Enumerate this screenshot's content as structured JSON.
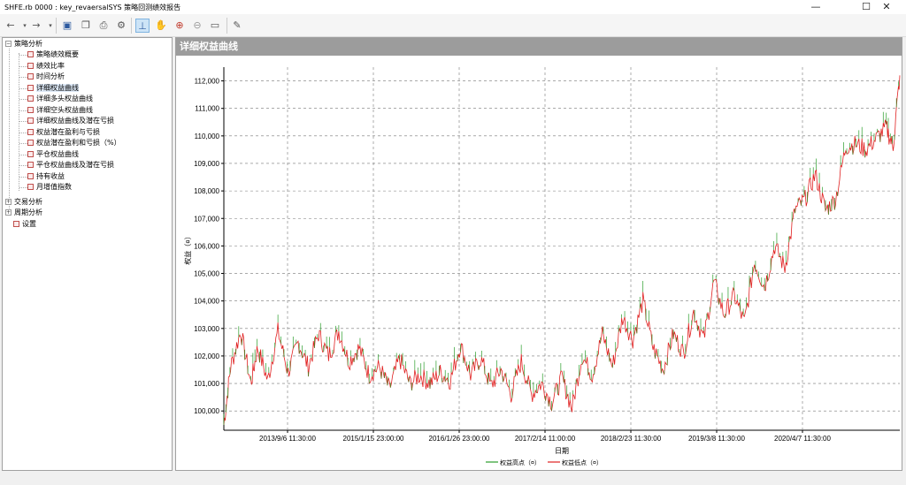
{
  "window": {
    "title": "SHFE.rb 0000 : key_revaersalSYS 策略回测绩效报告",
    "minimize": "—",
    "maximize": "☐",
    "close": "✕"
  },
  "toolbar": {
    "icons": [
      "back-arrow",
      "dropdown",
      "forward-arrow",
      "dropdown",
      "save",
      "copy",
      "print",
      "settings",
      "crosshair",
      "hand-pan",
      "zoom-in",
      "zoom-out",
      "fit-window",
      "pencil"
    ]
  },
  "tree": {
    "root1": "策略分析",
    "items": [
      "策略绩效概要",
      "绩效比率",
      "时间分析",
      "详细权益曲线",
      "详细多头权益曲线",
      "详细空头权益曲线",
      "详细权益曲线及潜在亏损",
      "权益潜在盈利与亏损",
      "权益潜在盈利和亏损（%）",
      "平仓权益曲线",
      "平仓权益曲线及潜在亏损",
      "持有收益",
      "月增值指数"
    ],
    "root2": "交易分析",
    "root3": "周期分析",
    "root4": "设置",
    "selected_index": 3
  },
  "panel": {
    "title": "详细权益曲线"
  },
  "chart_data": {
    "type": "line",
    "ylabel": "权益（¤）",
    "xlabel": "日期",
    "ylim": [
      99300,
      112500
    ],
    "yticks": [
      "100,000",
      "101,000",
      "102,000",
      "103,000",
      "104,000",
      "105,000",
      "106,000",
      "107,000",
      "108,000",
      "109,000",
      "110,000",
      "111,000",
      "112,000"
    ],
    "ytick_values": [
      100000,
      101000,
      102000,
      103000,
      104000,
      105000,
      106000,
      107000,
      108000,
      109000,
      110000,
      111000,
      112000
    ],
    "xticks": [
      "2013/9/6 11:30:00",
      "2015/1/15 23:00:00",
      "2016/1/26 23:00:00",
      "2017/2/14 11:00:00",
      "2018/2/23 11:30:00",
      "2019/3/8 11:30:00",
      "2020/4/7 11:30:00"
    ],
    "grid": true,
    "legend": [
      {
        "name": "权益高点（¤）",
        "color": "#2a9d2a"
      },
      {
        "name": "权益低点（¤）",
        "color": "#e02020"
      }
    ],
    "equity_path": [
      [
        0,
        99500
      ],
      [
        0.02,
        101600
      ],
      [
        0.05,
        102900
      ],
      [
        0.08,
        101000
      ],
      [
        0.1,
        102300
      ],
      [
        0.13,
        101100
      ],
      [
        0.16,
        102900
      ],
      [
        0.19,
        101400
      ],
      [
        0.22,
        102500
      ],
      [
        0.25,
        101600
      ],
      [
        0.28,
        102800
      ],
      [
        0.31,
        102000
      ],
      [
        0.34,
        102900
      ],
      [
        0.37,
        101800
      ],
      [
        0.4,
        102300
      ],
      [
        0.43,
        101300
      ],
      [
        0.46,
        101600
      ],
      [
        0.49,
        100800
      ],
      [
        0.52,
        101900
      ],
      [
        0.55,
        101000
      ],
      [
        0.58,
        101300
      ],
      [
        0.61,
        101000
      ],
      [
        0.64,
        101400
      ],
      [
        0.67,
        101100
      ],
      [
        0.7,
        102400
      ],
      [
        0.73,
        101300
      ],
      [
        0.76,
        101900
      ],
      [
        0.79,
        100900
      ],
      [
        0.82,
        101500
      ],
      [
        0.85,
        100600
      ],
      [
        0.88,
        101800
      ],
      [
        0.91,
        100600
      ],
      [
        0.94,
        101000
      ],
      [
        0.97,
        100300
      ],
      [
        1.0,
        101200
      ],
      [
        1.03,
        100100
      ],
      [
        1.06,
        102000
      ],
      [
        1.09,
        101300
      ],
      [
        1.12,
        102800
      ],
      [
        1.15,
        101600
      ],
      [
        1.18,
        103400
      ],
      [
        1.21,
        102600
      ],
      [
        1.24,
        104000
      ],
      [
        1.27,
        102300
      ],
      [
        1.3,
        101500
      ],
      [
        1.33,
        102800
      ],
      [
        1.36,
        102100
      ],
      [
        1.39,
        103600
      ],
      [
        1.42,
        102600
      ],
      [
        1.45,
        104700
      ],
      [
        1.48,
        103500
      ],
      [
        1.51,
        104200
      ],
      [
        1.54,
        103200
      ],
      [
        1.57,
        105400
      ],
      [
        1.6,
        104500
      ],
      [
        1.63,
        106000
      ],
      [
        1.66,
        105200
      ],
      [
        1.69,
        107300
      ],
      [
        1.72,
        107700
      ],
      [
        1.75,
        108600
      ],
      [
        1.78,
        107300
      ],
      [
        1.81,
        107700
      ],
      [
        1.84,
        109600
      ],
      [
        1.87,
        109700
      ],
      [
        1.9,
        109500
      ],
      [
        1.93,
        109900
      ],
      [
        1.96,
        110300
      ],
      [
        1.98,
        109600
      ],
      [
        2.0,
        112200
      ]
    ]
  }
}
